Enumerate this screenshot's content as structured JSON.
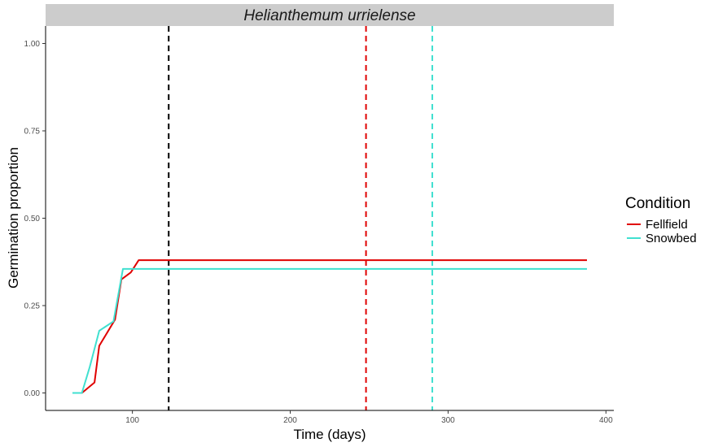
{
  "chart_data": {
    "type": "line",
    "facet_title": "Helianthemum urrielense",
    "xlabel": "Time (days)",
    "ylabel": "Germination proportion",
    "xlim": [
      45,
      405
    ],
    "ylim": [
      -0.05,
      1.05
    ],
    "x_ticks": [
      100,
      200,
      300,
      400
    ],
    "y_ticks": [
      0.0,
      0.25,
      0.5,
      0.75,
      1.0
    ],
    "x_tick_labels": [
      "100",
      "200",
      "300",
      "400"
    ],
    "y_tick_labels": [
      "0.00",
      "0.25",
      "0.50",
      "0.75",
      "1.00"
    ],
    "grid": false,
    "legend": {
      "title": "Condition",
      "placement": "right",
      "entries": [
        "Fellfield",
        "Snowbed"
      ]
    },
    "series": [
      {
        "name": "Fellfield",
        "color": "#e00000",
        "x": [
          62,
          68,
          76,
          79,
          89,
          93,
          99,
          104,
          388
        ],
        "y": [
          0.0,
          0.0,
          0.03,
          0.135,
          0.21,
          0.325,
          0.345,
          0.38,
          0.38
        ]
      },
      {
        "name": "Snowbed",
        "color": "#40e0d0",
        "x": [
          62,
          68,
          73,
          79,
          88,
          94,
          103,
          388
        ],
        "y": [
          0.0,
          0.0,
          0.075,
          0.178,
          0.205,
          0.355,
          0.355,
          0.355
        ]
      }
    ],
    "vlines": [
      {
        "x": 123,
        "color": "#000000",
        "style": "dashed"
      },
      {
        "x": 248,
        "color": "#e00000",
        "style": "dashed"
      },
      {
        "x": 290,
        "color": "#40e0d0",
        "style": "dashed"
      }
    ],
    "colors": {
      "strip_background": "#cccccc",
      "axis": "#000000"
    }
  }
}
